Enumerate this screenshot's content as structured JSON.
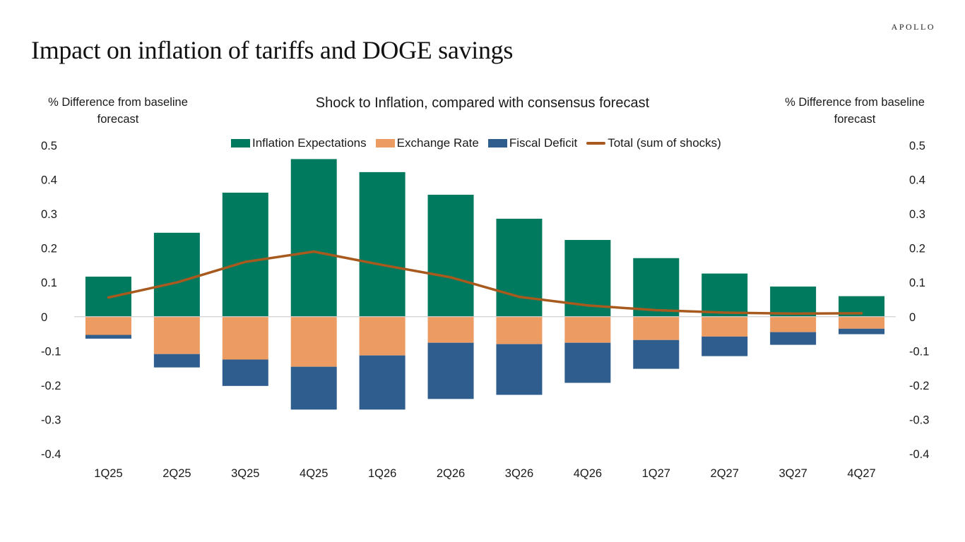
{
  "brand": "APOLLO",
  "page_title": "Impact on inflation of tariffs and DOGE savings",
  "colors": {
    "inflation_expectations": "#007A5E",
    "exchange_rate": "#EC9B63",
    "fiscal_deficit": "#2E5D8E",
    "total": "#A85A1E",
    "zero_line": "#D0D0D0"
  },
  "chart_data": {
    "type": "bar",
    "stacked": true,
    "title": "Shock to Inflation, compared with consensus forecast",
    "ylabel_left": "% Difference from baseline forecast",
    "ylabel_right": "% Difference from baseline forecast",
    "xlabel": "",
    "ylim": [
      -0.4,
      0.5
    ],
    "yticks": [
      "0.5",
      "0.4",
      "0.3",
      "0.2",
      "0.1",
      "0",
      "-0.1",
      "-0.2",
      "-0.3",
      "-0.4"
    ],
    "ytick_values": [
      0.5,
      0.4,
      0.3,
      0.2,
      0.1,
      0,
      -0.1,
      -0.2,
      -0.3,
      -0.4
    ],
    "grid": false,
    "legend_position": "top-center",
    "categories": [
      "1Q25",
      "2Q25",
      "3Q25",
      "4Q25",
      "1Q26",
      "2Q26",
      "3Q26",
      "4Q26",
      "1Q27",
      "2Q27",
      "3Q27",
      "4Q27"
    ],
    "series": [
      {
        "name": "Inflation Expectations",
        "kind": "bar",
        "values": [
          0.117,
          0.245,
          0.362,
          0.46,
          0.422,
          0.356,
          0.286,
          0.224,
          0.171,
          0.126,
          0.088,
          0.06
        ]
      },
      {
        "name": "Exchange Rate",
        "kind": "bar",
        "values": [
          -0.053,
          -0.109,
          -0.125,
          -0.146,
          -0.113,
          -0.076,
          -0.08,
          -0.076,
          -0.068,
          -0.058,
          -0.045,
          -0.035
        ]
      },
      {
        "name": "Fiscal Deficit",
        "kind": "bar",
        "values": [
          -0.011,
          -0.039,
          -0.077,
          -0.125,
          -0.158,
          -0.164,
          -0.148,
          -0.117,
          -0.084,
          -0.057,
          -0.037,
          -0.016
        ]
      },
      {
        "name": "Total (sum of shocks)",
        "kind": "line",
        "values": [
          0.056,
          0.1,
          0.16,
          0.19,
          0.151,
          0.115,
          0.058,
          0.033,
          0.019,
          0.012,
          0.009,
          0.01
        ]
      }
    ]
  }
}
